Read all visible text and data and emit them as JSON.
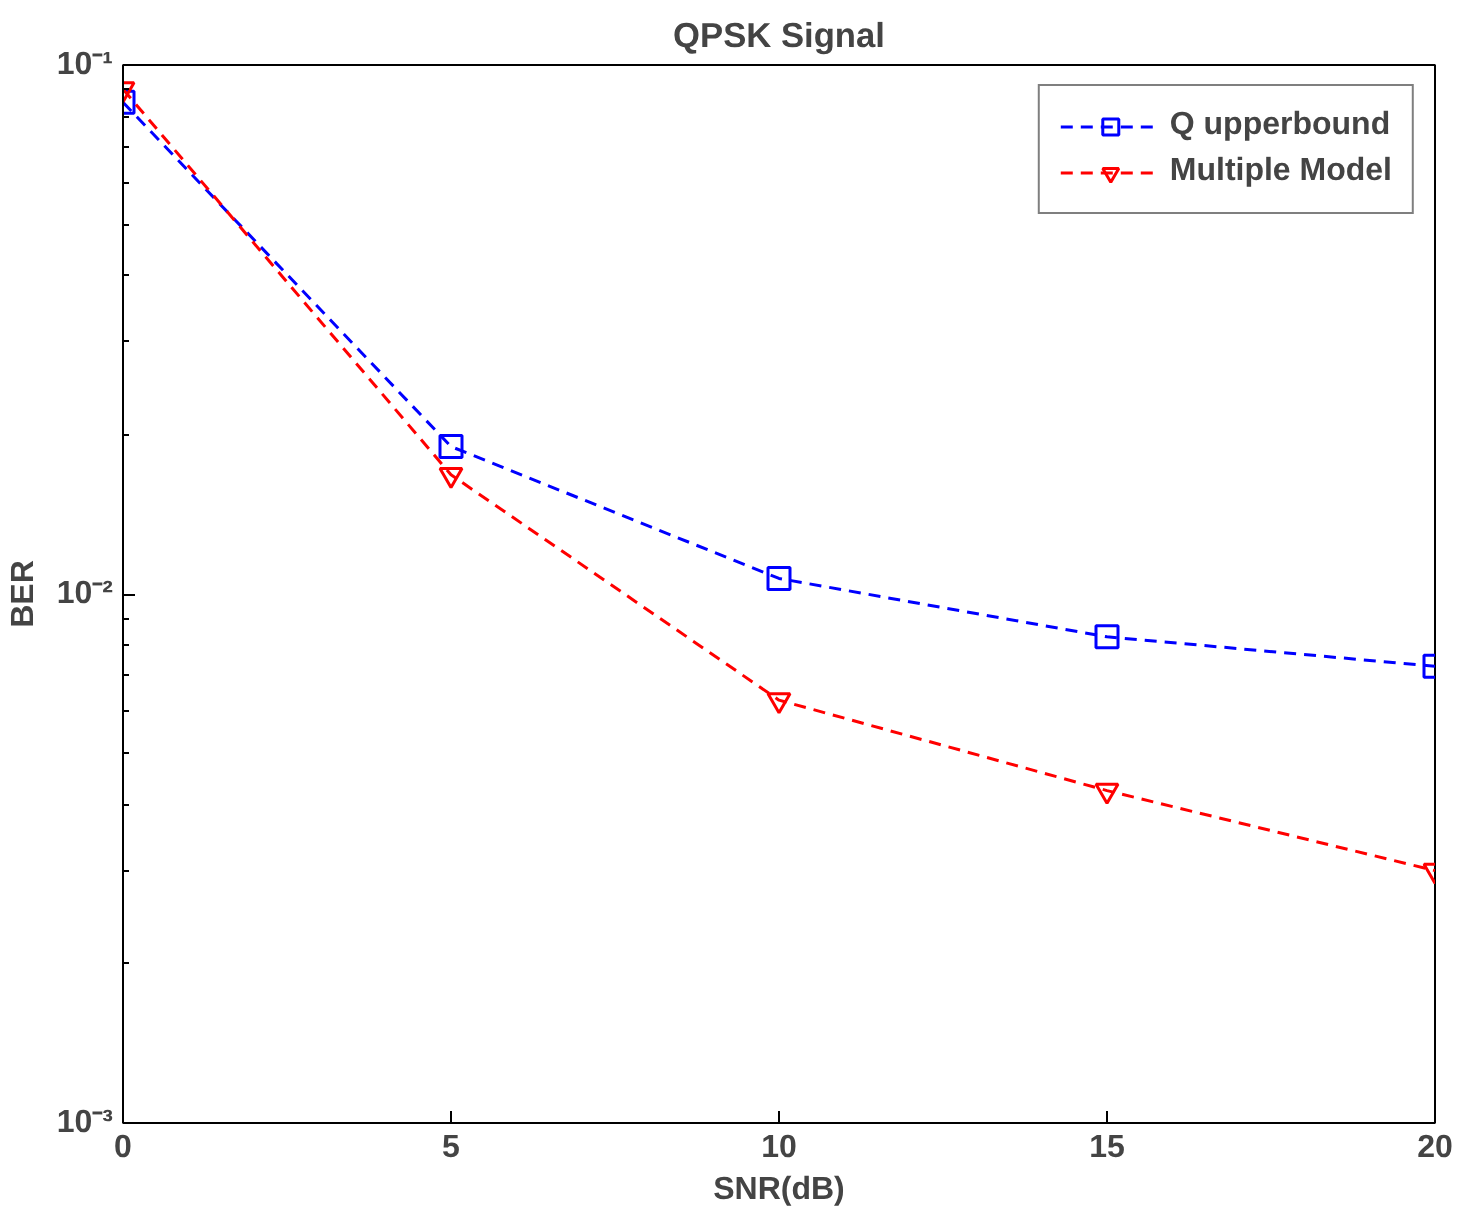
{
  "chart_data": {
    "type": "line",
    "title": "QPSK Signal",
    "xlabel": "SNR(dB)",
    "ylabel": "BER",
    "x": [
      0,
      5,
      10,
      15,
      20
    ],
    "series": [
      {
        "name": "Q upperbound",
        "color": "#0000ff",
        "marker": "square",
        "values": [
          0.085,
          0.019,
          0.0107,
          0.0083,
          0.0073
        ]
      },
      {
        "name": "Multiple Model",
        "color": "#ff0000",
        "marker": "triangle",
        "values": [
          0.09,
          0.0168,
          0.0063,
          0.00425,
          0.003
        ]
      }
    ],
    "log": "y",
    "xlim": [
      0,
      20
    ],
    "ylim": [
      0.001,
      0.1
    ],
    "xticks": [
      0,
      5,
      10,
      15,
      20
    ],
    "yticks": [
      {
        "value": 0.001,
        "label": "10⁻³"
      },
      {
        "value": 0.01,
        "label": "10⁻²"
      },
      {
        "value": 0.1,
        "label": "10⁻¹"
      }
    ],
    "line_style": "dashed",
    "legend": "top right",
    "grid": false
  }
}
